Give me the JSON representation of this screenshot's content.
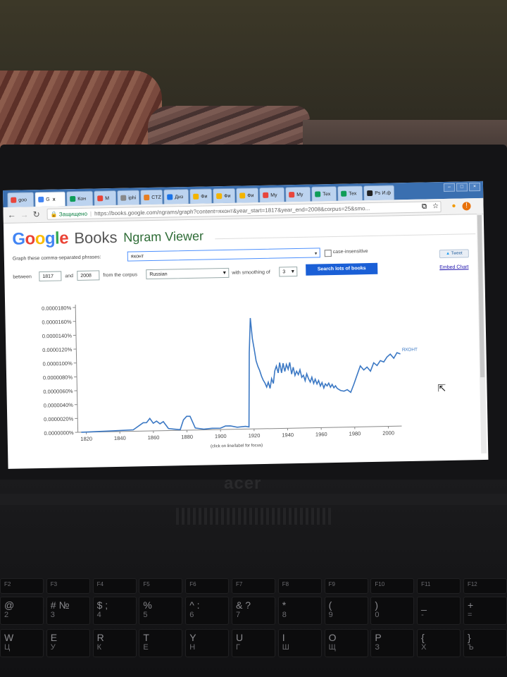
{
  "browser": {
    "tabs": [
      {
        "label": "goo",
        "fav": "#e8453c"
      },
      {
        "label": "G",
        "fav": "#4285f4",
        "close": "x"
      },
      {
        "label": "Кон",
        "fav": "#0f9d58"
      },
      {
        "label": "M",
        "fav": "#ea4335"
      },
      {
        "label": "iphi",
        "fav": "#888888"
      },
      {
        "label": "CTZ",
        "fav": "#e67e22"
      },
      {
        "label": "Диз",
        "fav": "#1a73e8"
      },
      {
        "label": "Фи",
        "fav": "#f4b400"
      },
      {
        "label": "Фи",
        "fav": "#f4b400"
      },
      {
        "label": "Фи",
        "fav": "#f4b400"
      },
      {
        "label": "My",
        "fav": "#e8453c"
      },
      {
        "label": "My",
        "fav": "#e8453c"
      },
      {
        "label": "Тех",
        "fav": "#0f9d58"
      },
      {
        "label": "Тех",
        "fav": "#0f9d58"
      },
      {
        "label": "Ps И.ф",
        "fav": "#222222"
      }
    ],
    "secure_label": "Защищено",
    "url": "https://books.google.com/ngrams/graph?content=яхонт&year_start=1817&year_end=2008&corpus=25&smo..."
  },
  "header": {
    "logo_google": [
      "G",
      "o",
      "o",
      "g",
      "l",
      "e"
    ],
    "logo_books": "Books",
    "logo_ngram": "Ngram Viewer"
  },
  "form": {
    "phrases_label": "Graph these comma-separated phrases:",
    "phrases_value": "яхонт",
    "case_insensitive_label": "case-insensitive",
    "between_label": "between",
    "year_start": "1817",
    "and_label": "and",
    "year_end": "2008",
    "corpus_label": "from the corpus",
    "corpus_value": "Russian",
    "smoothing_label": "with smoothing of",
    "smoothing_value": "3",
    "search_button": "Search lots of books",
    "tweet_label": "Tweet",
    "embed_label": "Embed Chart",
    "click_hint": "(click on line/label for focus)"
  },
  "chart_data": {
    "type": "line",
    "ylim": [
      0,
      1.8e-05
    ],
    "xlim": [
      1815,
      2008
    ],
    "y_ticks": [
      "0.0000000%",
      "0.0000020%",
      "0.0000040%",
      "0.0000060%",
      "0.0000080%",
      "0.0000100%",
      "0.0000120%",
      "0.0000140%",
      "0.0000160%",
      "0.0000180%"
    ],
    "x_ticks": [
      "1820",
      "1840",
      "1860",
      "1880",
      "1900",
      "1920",
      "1940",
      "1960",
      "1980",
      "2000"
    ],
    "series": [
      {
        "name": "яхонт",
        "color": "#3b78c4",
        "x": [
          1817,
          1835,
          1848,
          1854,
          1856,
          1858,
          1860,
          1862,
          1864,
          1866,
          1869,
          1872,
          1876,
          1878,
          1880,
          1882,
          1885,
          1890,
          1895,
          1900,
          1903,
          1906,
          1910,
          1915,
          1917,
          1918,
          1919,
          1920,
          1921,
          1922,
          1923,
          1924,
          1925,
          1926,
          1927,
          1928,
          1929,
          1930,
          1931,
          1932,
          1933,
          1934,
          1935,
          1936,
          1937,
          1938,
          1939,
          1940,
          1941,
          1942,
          1943,
          1944,
          1945,
          1946,
          1947,
          1948,
          1949,
          1950,
          1951,
          1952,
          1953,
          1954,
          1955,
          1956,
          1957,
          1958,
          1959,
          1960,
          1961,
          1962,
          1963,
          1964,
          1965,
          1966,
          1967,
          1968,
          1969,
          1970,
          1972,
          1974,
          1976,
          1978,
          1980,
          1982,
          1984,
          1986,
          1988,
          1990,
          1992,
          1994,
          1996,
          1998,
          2000,
          2002,
          2004,
          2006,
          2008
        ],
        "y": [
          0,
          1e-07,
          2e-07,
          1.2e-06,
          1.2e-06,
          1.8e-06,
          1.1e-06,
          1.4e-06,
          1e-06,
          1.3e-06,
          3e-07,
          2e-07,
          1e-07,
          1.5e-06,
          2e-06,
          2e-06,
          3e-07,
          1e-07,
          2e-07,
          2e-07,
          5e-07,
          5e-07,
          3e-07,
          4e-07,
          3e-07,
          1.1e-05,
          1.6e-05,
          1.3e-05,
          1.15e-05,
          9.8e-06,
          9e-06,
          8.4e-06,
          7.6e-06,
          7e-06,
          6.6e-06,
          6e-06,
          6.7e-06,
          5.8e-06,
          7.2e-06,
          6.5e-06,
          8.3e-06,
          9e-06,
          8e-06,
          9.5e-06,
          8e-06,
          9.4e-06,
          8.2e-06,
          9.2e-06,
          8.5e-06,
          9.5e-06,
          7.8e-06,
          8.8e-06,
          7.6e-06,
          8.2e-06,
          7.7e-06,
          8.4e-06,
          7.3e-06,
          7.6e-06,
          6.8e-06,
          7.8e-06,
          7.1e-06,
          6.6e-06,
          7.3e-06,
          6.4e-06,
          7e-06,
          6.3e-06,
          6.8e-06,
          6e-06,
          6.5e-06,
          5.7e-06,
          6.3e-06,
          6e-06,
          6.4e-06,
          5.8e-06,
          6.2e-06,
          5.7e-06,
          6e-06,
          5.6e-06,
          5.3e-06,
          5.2e-06,
          5.4e-06,
          5e-06,
          6.2e-06,
          7.5e-06,
          8.8e-06,
          8.2e-06,
          8.6e-06,
          8e-06,
          9.2e-06,
          8.8e-06,
          9.5e-06,
          9.3e-06,
          1e-05,
          1.04e-05,
          9.8e-06,
          1.06e-05,
          1.04e-05
        ],
        "label_at_end": "ЯХОНТ"
      }
    ]
  }
}
